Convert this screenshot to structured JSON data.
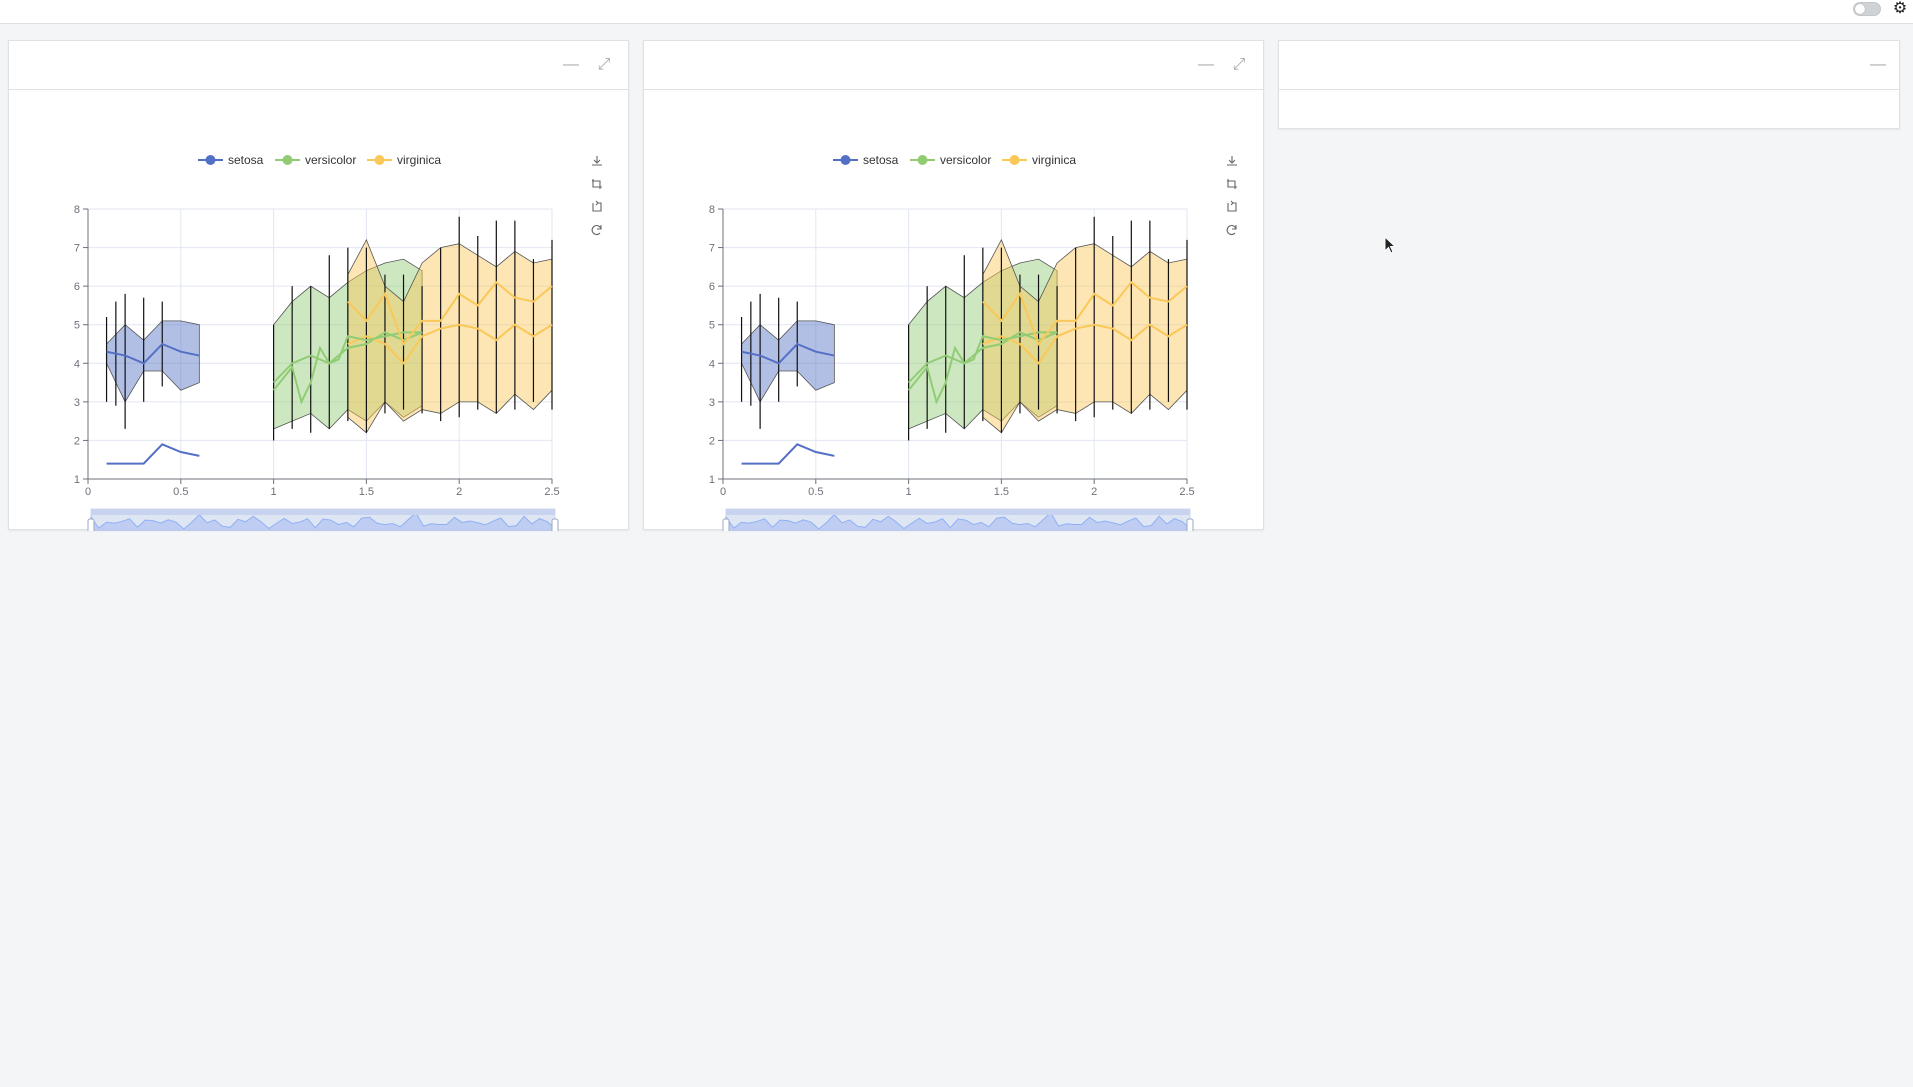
{
  "topbar": {
    "toggle_state": "off",
    "settings_icon": "gear-icon"
  },
  "colors": {
    "setosa": "#5470c6",
    "versicolor": "#91cc75",
    "virginica": "#fac858",
    "axis": "#6e7079",
    "grid": "#e0e6f1",
    "zoom_fill": "#d2dbee",
    "zoom_line": "#8fb0f7"
  },
  "panels": [
    {
      "header_icons": [
        "minimize-icon",
        "expand-icon"
      ],
      "toolbox_icons": [
        "download-icon",
        "zoom-select-icon",
        "zoom-reset-icon",
        "restore-icon"
      ],
      "chart_index": 0
    },
    {
      "header_icons": [
        "minimize-icon",
        "expand-icon"
      ],
      "toolbox_icons": [
        "download-icon",
        "zoom-select-icon",
        "zoom-reset-icon",
        "restore-icon"
      ],
      "chart_index": 1
    },
    {
      "header_icons": [
        "minimize-icon"
      ]
    }
  ],
  "chart_data": [
    {
      "type": "line",
      "legend": [
        "setosa",
        "versicolor",
        "virginica"
      ],
      "legend_position": "top",
      "xlim": [
        0,
        2.5
      ],
      "ylim": [
        1,
        8
      ],
      "x_ticks": [
        "0",
        "0.5",
        "1",
        "1.5",
        "2",
        "2.5"
      ],
      "y_ticks": [
        "1",
        "2",
        "3",
        "4",
        "5",
        "6",
        "7",
        "8"
      ],
      "grid": true,
      "datazoom_slider": true,
      "series": [
        {
          "name": "setosa",
          "line": [
            [
              0.1,
              1.4
            ],
            [
              0.2,
              1.4
            ],
            [
              0.3,
              1.4
            ],
            [
              0.4,
              1.9
            ],
            [
              0.5,
              1.7
            ],
            [
              0.6,
              1.6
            ]
          ],
          "band_upper": [
            [
              0.1,
              4.5
            ],
            [
              0.2,
              5.0
            ],
            [
              0.3,
              4.6
            ],
            [
              0.4,
              5.1
            ],
            [
              0.5,
              5.1
            ],
            [
              0.6,
              5.0
            ]
          ],
          "band_lower": [
            [
              0.1,
              4.0
            ],
            [
              0.2,
              3.0
            ],
            [
              0.3,
              3.8
            ],
            [
              0.4,
              3.8
            ],
            [
              0.5,
              3.3
            ],
            [
              0.6,
              3.5
            ]
          ],
          "center": [
            [
              0.1,
              4.3
            ],
            [
              0.2,
              4.2
            ],
            [
              0.3,
              4.0
            ],
            [
              0.4,
              4.5
            ],
            [
              0.5,
              4.3
            ],
            [
              0.6,
              4.2
            ]
          ]
        },
        {
          "name": "versicolor",
          "line": [
            [
              1.0,
              3.3
            ],
            [
              1.1,
              3.9
            ],
            [
              1.15,
              3.0
            ],
            [
              1.2,
              3.5
            ],
            [
              1.25,
              4.4
            ],
            [
              1.3,
              4.0
            ],
            [
              1.35,
              4.1
            ],
            [
              1.4,
              4.7
            ],
            [
              1.5,
              4.6
            ],
            [
              1.6,
              4.7
            ],
            [
              1.7,
              4.8
            ],
            [
              1.8,
              4.8
            ]
          ],
          "band_upper": [
            [
              1.0,
              5.0
            ],
            [
              1.1,
              5.6
            ],
            [
              1.2,
              6.0
            ],
            [
              1.3,
              5.7
            ],
            [
              1.4,
              6.1
            ],
            [
              1.5,
              6.4
            ],
            [
              1.6,
              6.6
            ],
            [
              1.7,
              6.7
            ],
            [
              1.8,
              6.4
            ]
          ],
          "band_lower": [
            [
              1.0,
              2.3
            ],
            [
              1.1,
              2.5
            ],
            [
              1.2,
              2.7
            ],
            [
              1.3,
              2.3
            ],
            [
              1.4,
              2.8
            ],
            [
              1.5,
              2.5
            ],
            [
              1.6,
              3.0
            ],
            [
              1.7,
              2.6
            ],
            [
              1.8,
              2.9
            ]
          ],
          "center": [
            [
              1.0,
              3.5
            ],
            [
              1.1,
              4.0
            ],
            [
              1.2,
              4.2
            ],
            [
              1.3,
              4.0
            ],
            [
              1.4,
              4.4
            ],
            [
              1.5,
              4.5
            ],
            [
              1.6,
              4.8
            ],
            [
              1.7,
              4.6
            ],
            [
              1.8,
              4.8
            ]
          ]
        },
        {
          "name": "virginica",
          "line": [
            [
              1.4,
              5.6
            ],
            [
              1.5,
              5.1
            ],
            [
              1.6,
              5.8
            ],
            [
              1.7,
              4.5
            ],
            [
              1.8,
              5.1
            ],
            [
              1.9,
              5.1
            ],
            [
              2.0,
              5.8
            ],
            [
              2.1,
              5.5
            ],
            [
              2.2,
              6.1
            ],
            [
              2.3,
              5.7
            ],
            [
              2.4,
              5.6
            ],
            [
              2.5,
              6.0
            ]
          ],
          "band_upper": [
            [
              1.4,
              6.3
            ],
            [
              1.5,
              7.2
            ],
            [
              1.6,
              6.0
            ],
            [
              1.7,
              5.6
            ],
            [
              1.8,
              6.6
            ],
            [
              1.9,
              7.0
            ],
            [
              2.0,
              7.1
            ],
            [
              2.1,
              6.8
            ],
            [
              2.2,
              6.5
            ],
            [
              2.3,
              6.9
            ],
            [
              2.4,
              6.6
            ],
            [
              2.5,
              6.7
            ]
          ],
          "band_lower": [
            [
              1.4,
              2.6
            ],
            [
              1.5,
              2.2
            ],
            [
              1.6,
              3.0
            ],
            [
              1.7,
              2.5
            ],
            [
              1.8,
              2.8
            ],
            [
              1.9,
              2.7
            ],
            [
              2.0,
              3.0
            ],
            [
              2.1,
              3.0
            ],
            [
              2.2,
              2.7
            ],
            [
              2.3,
              3.2
            ],
            [
              2.4,
              2.8
            ],
            [
              2.5,
              3.3
            ]
          ],
          "center": [
            [
              1.4,
              4.5
            ],
            [
              1.5,
              4.7
            ],
            [
              1.6,
              4.5
            ],
            [
              1.7,
              4.0
            ],
            [
              1.8,
              4.7
            ],
            [
              1.9,
              4.9
            ],
            [
              2.0,
              5.0
            ],
            [
              2.1,
              4.9
            ],
            [
              2.2,
              4.6
            ],
            [
              2.3,
              5.0
            ],
            [
              2.4,
              4.7
            ],
            [
              2.5,
              5.0
            ]
          ]
        }
      ],
      "error_bars": [
        [
          0.1,
          3.0,
          5.2
        ],
        [
          0.15,
          2.9,
          5.6
        ],
        [
          0.2,
          2.3,
          5.8
        ],
        [
          0.3,
          3.0,
          5.7
        ],
        [
          0.4,
          3.4,
          5.6
        ],
        [
          1.0,
          2.0,
          5.0
        ],
        [
          1.1,
          2.3,
          6.0
        ],
        [
          1.2,
          2.2,
          6.0
        ],
        [
          1.3,
          2.3,
          6.8
        ],
        [
          1.4,
          2.5,
          7.0
        ],
        [
          1.5,
          2.2,
          7.0
        ],
        [
          1.6,
          2.7,
          6.3
        ],
        [
          1.7,
          2.8,
          6.3
        ],
        [
          1.8,
          2.7,
          6.0
        ],
        [
          1.9,
          2.5,
          7.0
        ],
        [
          2.0,
          2.6,
          7.8
        ],
        [
          2.1,
          2.8,
          7.3
        ],
        [
          2.2,
          2.7,
          7.7
        ],
        [
          2.3,
          2.8,
          7.7
        ],
        [
          2.4,
          3.0,
          6.7
        ],
        [
          2.5,
          2.8,
          7.2
        ]
      ]
    }
  ]
}
